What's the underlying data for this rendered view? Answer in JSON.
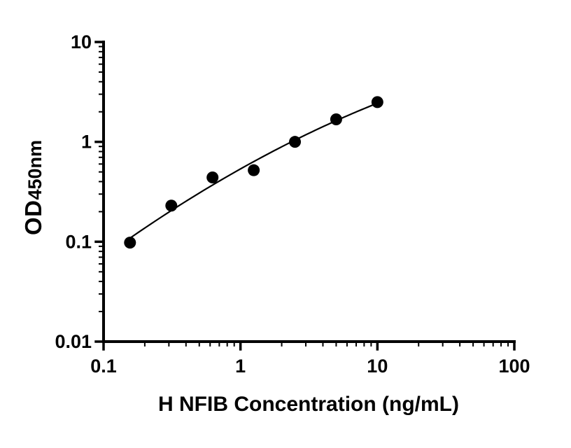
{
  "figure": {
    "background": "#ffffff",
    "axis_color": "#000000",
    "text_color": "#000000"
  },
  "chart_data": {
    "type": "scatter",
    "title": "",
    "xlabel": "H NFIB Concentration (ng/mL)",
    "ylabel": "OD450nm",
    "ylabel_main": "OD",
    "ylabel_sub": "450nm",
    "x_scale": "log10",
    "y_scale": "log10",
    "xlim": [
      0.1,
      100
    ],
    "ylim": [
      0.01,
      10
    ],
    "x_tick_values": [
      0.1,
      1,
      10,
      100
    ],
    "x_tick_labels": [
      "0.1",
      "1",
      "10",
      "100"
    ],
    "y_tick_values": [
      0.01,
      0.1,
      1,
      10
    ],
    "y_tick_labels": [
      "0.01",
      "0.1",
      "1",
      "10"
    ],
    "minor_ticks": true,
    "grid": false,
    "legend": "none",
    "marker": "filled-circle",
    "marker_color": "#000000",
    "line_color": "#000000",
    "fit_line": true,
    "points": [
      {
        "x": 0.156,
        "y": 0.098
      },
      {
        "x": 0.3125,
        "y": 0.23
      },
      {
        "x": 0.625,
        "y": 0.44
      },
      {
        "x": 1.25,
        "y": 0.52
      },
      {
        "x": 2.5,
        "y": 1.0
      },
      {
        "x": 5,
        "y": 1.68
      },
      {
        "x": 10,
        "y": 2.5
      }
    ]
  }
}
